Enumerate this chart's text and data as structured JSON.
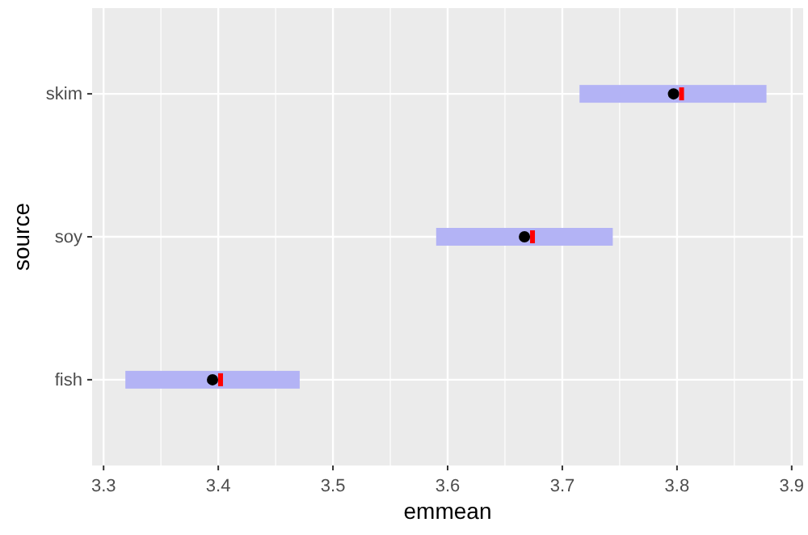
{
  "chart_data": {
    "type": "bar",
    "orientation": "horizontal",
    "xlabel": "emmean",
    "ylabel": "source",
    "categories": [
      "skim",
      "soy",
      "fish"
    ],
    "series": [
      {
        "color": "#b3b3f5",
        "base": [
          3.715,
          3.59,
          3.319
        ],
        "values": [
          0.163,
          0.154,
          0.152
        ]
      },
      {
        "type": "scatter",
        "color": "#000000",
        "marker": "circle",
        "values": [
          3.797,
          3.667,
          3.395
        ]
      },
      {
        "type": "scatter",
        "color": "#ff0000",
        "marker": "square",
        "values": [
          3.804,
          3.674,
          3.402
        ]
      }
    ],
    "xlim": [
      3.29,
      3.91
    ],
    "xticks": [
      3.3,
      {
        "value": 3.35,
        "label": null
      },
      3.4,
      {
        "value": 3.45,
        "label": null
      },
      3.5,
      {
        "value": 3.55,
        "label": null
      },
      3.6,
      {
        "value": 3.65,
        "label": null
      },
      3.7,
      {
        "value": 3.75,
        "label": null
      },
      3.8,
      {
        "value": 3.85,
        "label": null
      },
      3.9
    ],
    "grid": true
  }
}
